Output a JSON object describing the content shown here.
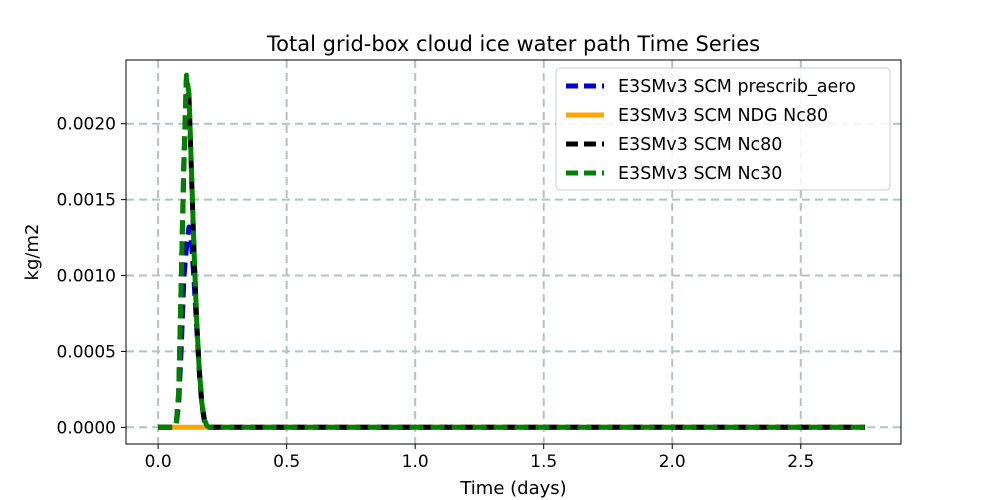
{
  "chart_data": {
    "type": "line",
    "title": "Total grid-box cloud ice water path Time Series",
    "xlabel": "Time (days)",
    "ylabel": "kg/m2",
    "xlim": [
      -0.125,
      2.89
    ],
    "ylim": [
      -0.00011,
      0.00242
    ],
    "xticks": [
      0.0,
      0.5,
      1.0,
      1.5,
      2.0,
      2.5
    ],
    "xtick_labels": [
      "0.0",
      "0.5",
      "1.0",
      "1.5",
      "2.0",
      "2.5"
    ],
    "yticks": [
      0.0,
      0.0005,
      0.001,
      0.0015,
      0.002
    ],
    "ytick_labels": [
      "0.0000",
      "0.0005",
      "0.0010",
      "0.0015",
      "0.0020"
    ],
    "grid": true,
    "legend_position": "upper right",
    "series": [
      {
        "name": "E3SMv3 SCM prescrib_aero",
        "color": "#0000cc",
        "style": "dashed",
        "x": [
          0.0,
          0.04,
          0.06,
          0.07,
          0.08,
          0.09,
          0.1,
          0.11,
          0.12,
          0.13,
          0.14,
          0.15,
          0.16,
          0.17,
          0.18,
          0.19,
          0.2,
          0.22,
          0.25,
          0.5,
          1.0,
          1.5,
          2.0,
          2.5,
          2.75
        ],
        "y": [
          0.0,
          0.0,
          0.0,
          1e-05,
          0.00016,
          0.00053,
          0.00098,
          0.00118,
          0.00132,
          0.00121,
          0.00096,
          0.00066,
          0.00037,
          0.00015,
          4e-05,
          1e-05,
          0.0,
          0.0,
          0.0,
          0.0,
          0.0,
          0.0,
          0.0,
          0.0,
          0.0
        ]
      },
      {
        "name": "E3SMv3 SCM NDG Nc80",
        "color": "#ffa500",
        "style": "solid",
        "x": [
          0.0,
          0.5,
          1.0,
          1.5,
          2.0,
          2.5,
          2.75
        ],
        "y": [
          0.0,
          0.0,
          0.0,
          0.0,
          0.0,
          0.0,
          0.0
        ]
      },
      {
        "name": "E3SMv3 SCM Nc80",
        "color": "#000000",
        "style": "dashed",
        "x": [
          0.0,
          0.05,
          0.06,
          0.07,
          0.08,
          0.09,
          0.1,
          0.11,
          0.12,
          0.13,
          0.14,
          0.15,
          0.16,
          0.17,
          0.18,
          0.19,
          0.2,
          0.22,
          0.25,
          0.5,
          1.0,
          1.5,
          2.0,
          2.5,
          2.75
        ],
        "y": [
          0.0,
          0.0,
          0.0,
          1e-05,
          0.00022,
          0.00096,
          0.00172,
          0.00229,
          0.00218,
          0.00166,
          0.00114,
          0.0007,
          0.00038,
          0.00016,
          5e-05,
          1e-05,
          0.0,
          0.0,
          0.0,
          0.0,
          0.0,
          0.0,
          0.0,
          0.0,
          0.0
        ]
      },
      {
        "name": "E3SMv3 SCM Nc30",
        "color": "#008000",
        "style": "dashed",
        "x": [
          0.0,
          0.05,
          0.06,
          0.07,
          0.08,
          0.09,
          0.1,
          0.11,
          0.12,
          0.13,
          0.14,
          0.15,
          0.16,
          0.17,
          0.18,
          0.19,
          0.2,
          0.22,
          0.25,
          0.5,
          1.0,
          1.5,
          2.0,
          2.5,
          2.75
        ],
        "y": [
          0.0,
          0.0,
          0.0,
          1e-05,
          0.00023,
          0.00098,
          0.00175,
          0.00232,
          0.0022,
          0.00168,
          0.00115,
          0.0007,
          0.00038,
          0.00016,
          5e-05,
          1e-05,
          0.0,
          0.0,
          0.0,
          0.0,
          0.0,
          0.0,
          0.0,
          0.0,
          0.0
        ]
      }
    ]
  }
}
